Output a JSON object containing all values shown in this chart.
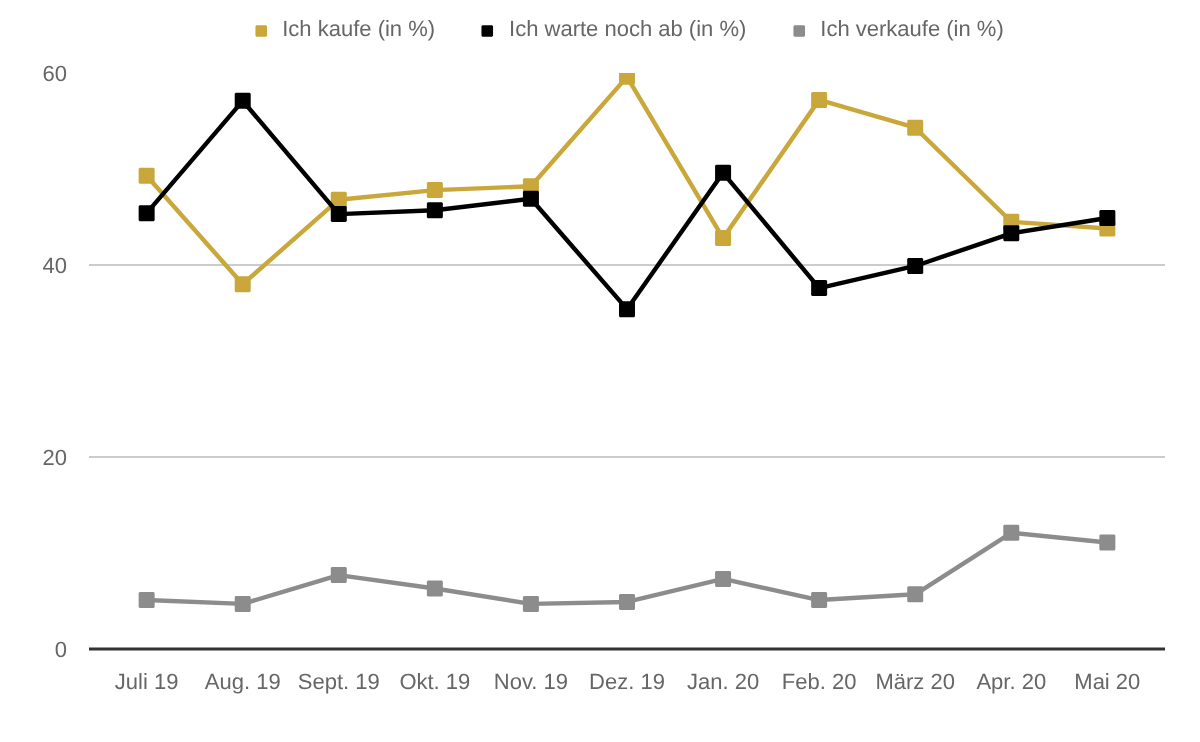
{
  "chart_data": {
    "type": "line",
    "categories": [
      "Juli 19",
      "Aug. 19",
      "Sept. 19",
      "Okt. 19",
      "Nov. 19",
      "Dez. 19",
      "Jan. 20",
      "Feb. 20",
      "März 20",
      "Apr. 20",
      "Mai 20"
    ],
    "series": [
      {
        "name": "Ich kaufe (in %)",
        "color": "#c9a73b",
        "values": [
          49.3,
          38,
          46.8,
          47.8,
          48.2,
          59.6,
          42.8,
          57.2,
          54.3,
          44.5,
          43.8
        ]
      },
      {
        "name": "Ich warte noch ab (in %)",
        "color": "#000000",
        "values": [
          45.4,
          57.1,
          45.3,
          45.7,
          46.9,
          35.4,
          49.6,
          37.6,
          39.9,
          43.3,
          44.9
        ]
      },
      {
        "name": "Ich verkaufe (in %)",
        "color": "#8c8c8c",
        "values": [
          5.1,
          4.7,
          7.7,
          6.3,
          4.7,
          4.9,
          7.3,
          5.1,
          5.7,
          12.1,
          11.1
        ]
      }
    ],
    "ylim": [
      0,
      60
    ],
    "yticks": [
      0,
      20,
      40,
      60
    ],
    "grid": "y",
    "legend": "top",
    "marker": "square",
    "line_style": "solid"
  }
}
